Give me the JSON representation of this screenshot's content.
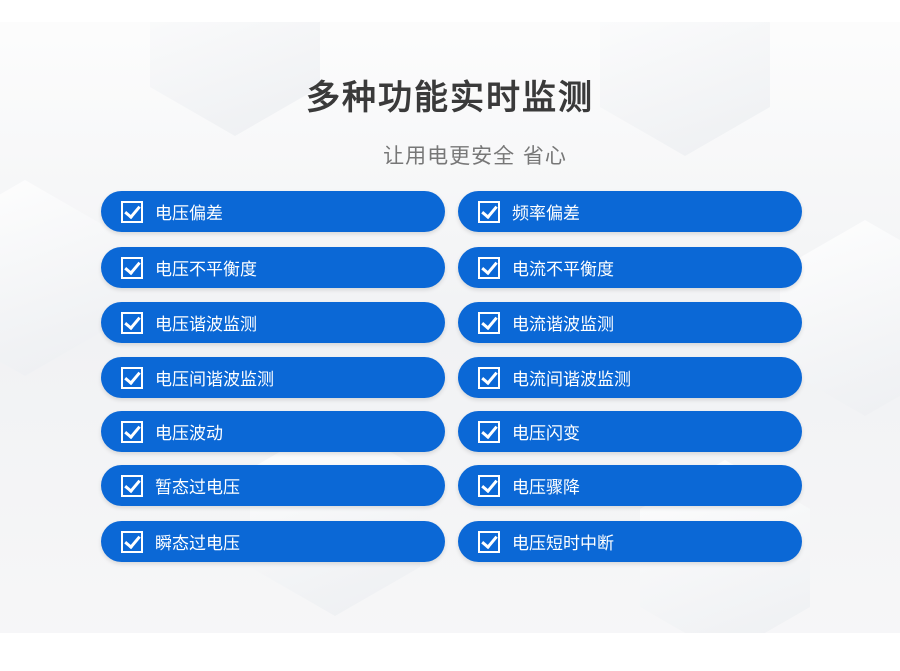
{
  "title": "多种功能实时监测",
  "subtitle": "让用电更安全 省心",
  "left_items": [
    "电压偏差",
    "电压不平衡度",
    "电压谐波监测",
    "电压间谐波监测",
    "电压波动",
    "暂态过电压",
    "瞬态过电压"
  ],
  "right_items": [
    "频率偏差",
    "电流不平衡度",
    "电流谐波监测",
    "电流间谐波监测",
    "电压闪变",
    "电压骤降",
    "电压短时中断"
  ],
  "colors": {
    "pill": "#0b68d6",
    "title": "#3a3a3a",
    "subtitle": "#777777"
  },
  "icon": "checkbox-checked-icon"
}
